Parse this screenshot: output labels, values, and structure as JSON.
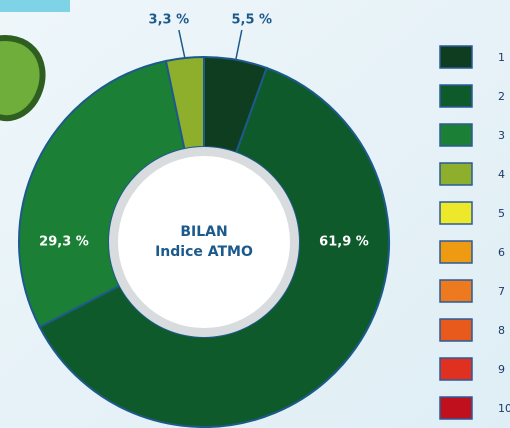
{
  "chart_data": {
    "type": "donut",
    "center_text": [
      "BILAN",
      "Indice ATMO"
    ],
    "categories": [
      "1",
      "2",
      "3",
      "4",
      "5",
      "6",
      "7",
      "8",
      "9",
      "10"
    ],
    "colors": [
      "#0f3d1f",
      "#0e5a2a",
      "#1b8035",
      "#8daf2b",
      "#ede82a",
      "#ee9a12",
      "#ee7a20",
      "#e85a1b",
      "#e03020",
      "#c0101e"
    ],
    "values": [
      5.5,
      61.9,
      29.3,
      3.3,
      null,
      null,
      null,
      null,
      null,
      null
    ],
    "value_labels": [
      "5,5 %",
      "61,9 %",
      "29,3 %",
      "3,3 %",
      null,
      null,
      null,
      null,
      null,
      null
    ]
  }
}
